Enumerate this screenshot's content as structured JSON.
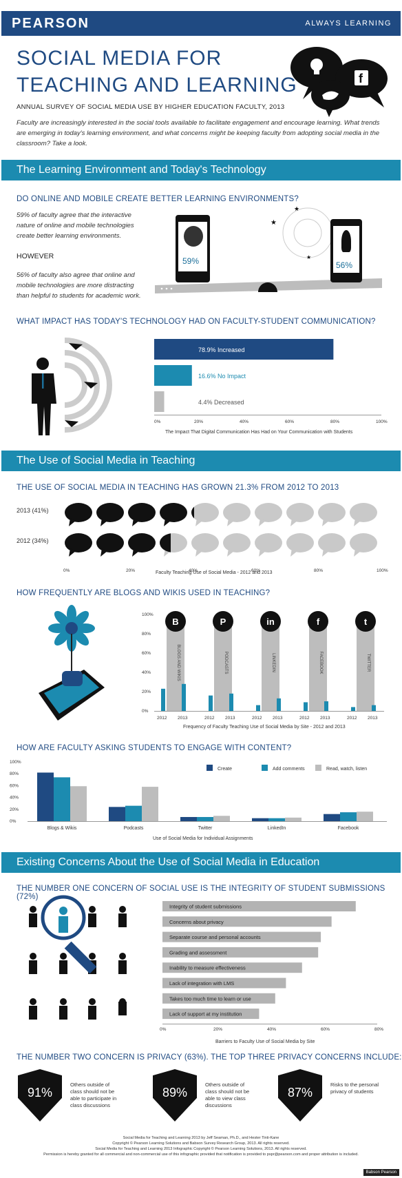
{
  "header": {
    "brand": "PEARSON",
    "tagline": "ALWAYS LEARNING"
  },
  "title_line1": "SOCIAL MEDIA FOR",
  "title_line2": "TEACHING AND LEARNING",
  "subtitle": "ANNUAL SURVEY OF SOCIAL MEDIA USE BY HIGHER EDUCATION FACULTY, 2013",
  "intro": "Faculty are increasingly interested in the social tools available to facilitate engagement and encourage learning. What trends are emerging in today's learning environment, and what concerns might be keeping faculty from adopting social media in the classroom? Take a look.",
  "section1": {
    "band": "The Learning Environment and Today's Technology",
    "q1": "DO ONLINE AND MOBILE CREATE BETTER LEARNING ENVIRONMENTS?",
    "agree_text": "59% of faculty agree that the interactive nature of online and mobile technologies create better learning environments.",
    "however": "HOWEVER",
    "distract_text": "56% of faculty also agree that online and mobile technologies are more distracting than helpful to students for academic work.",
    "phone_left_pct": "59%",
    "phone_right_pct": "56%",
    "q2": "WHAT IMPACT HAS TODAY'S TECHNOLOGY HAD ON FACULTY-STUDENT COMMUNICATION?",
    "impact_caption": "The Impact That Digital Communication Has Had on Your Communication with Students"
  },
  "impact_chart": {
    "type": "bar",
    "categories": [
      "Increased",
      "No Impact",
      "Decreased"
    ],
    "values": [
      78.9,
      16.6,
      4.4
    ],
    "labels": [
      "78.9%  Increased",
      "16.6%  No Impact",
      "4.4%  Decreased"
    ],
    "colors": [
      "#1f4a82",
      "#1c8bb0",
      "#bdbdbd"
    ],
    "ticks": [
      "0%",
      "20%",
      "40%",
      "60%",
      "80%",
      "100%"
    ],
    "xlim": [
      0,
      100
    ]
  },
  "section2": {
    "band": "The Use of Social Media in Teaching",
    "q1": "THE USE OF SOCIAL MEDIA IN TEACHING HAS GROWN 21.3% FROM 2012 TO 2013",
    "row1": "2013  (41%)",
    "row2": "2012  (34%)",
    "bubble_ticks": [
      "0%",
      "20%",
      "40%",
      "60%",
      "80%",
      "100%"
    ],
    "bubble_caption": "Faculty Teaching Use of Social Media - 2012 and 2013",
    "q2": "HOW FREQUENTLY ARE BLOGS AND WIKIS USED IN TEACHING?",
    "freq_caption": "Frequency of Faculty Teaching Use of Social Media by Site - 2012 and 2013",
    "q3": "HOW ARE FACULTY ASKING STUDENTS TO ENGAGE WITH CONTENT?",
    "engage_caption": "Use of Social Media for Individual Assignments"
  },
  "bubble_data": {
    "values": [
      41,
      34
    ],
    "years": [
      "2013",
      "2012"
    ]
  },
  "freq_chart": {
    "type": "bar",
    "categories": [
      "BLOGS AND WIKIS",
      "PODCASTS",
      "LINKEDIN",
      "FACEBOOK",
      "TWITTER"
    ],
    "icons": [
      "B",
      "P",
      "in",
      "f",
      "t"
    ],
    "icon_names": [
      "blogger-icon",
      "podcast-icon",
      "linkedin-icon",
      "facebook-icon",
      "twitter-icon"
    ],
    "years": [
      "2012",
      "2013"
    ],
    "series": [
      {
        "name": "2012",
        "values": [
          23,
          16,
          6,
          9,
          4
        ]
      },
      {
        "name": "2013",
        "values": [
          28,
          18,
          13,
          10,
          6
        ]
      }
    ],
    "ticks": [
      "100%",
      "80%",
      "60%",
      "40%",
      "20%",
      "0%"
    ],
    "ylim": [
      0,
      100
    ]
  },
  "engage_chart": {
    "type": "bar",
    "categories": [
      "Blogs & Wikis",
      "Podcasts",
      "Twitter",
      "LinkedIn",
      "Facebook"
    ],
    "series": [
      {
        "name": "Create",
        "color": "#1f4a82",
        "values": [
          82,
          24,
          7,
          5,
          12
        ]
      },
      {
        "name": "Add comments",
        "color": "#1c8bb0",
        "values": [
          74,
          26,
          7,
          5,
          15
        ]
      },
      {
        "name": "Read, watch, listen",
        "color": "#bdbdbd",
        "values": [
          59,
          58,
          9,
          6,
          16
        ]
      }
    ],
    "ticks": [
      "100%",
      "80%",
      "60%",
      "40%",
      "20%",
      "0%"
    ],
    "ylim": [
      0,
      100
    ]
  },
  "section3": {
    "band": "Existing Concerns About the Use of Social Media in Education",
    "q1": "THE NUMBER ONE CONCERN OF SOCIAL USE IS THE INTEGRITY OF STUDENT SUBMISSIONS (72%)",
    "concern_caption": "Barriers to Faculty Use of Social Media by Site",
    "q2": "THE NUMBER TWO CONCERN IS PRIVACY (63%). THE TOP THREE PRIVACY CONCERNS INCLUDE:"
  },
  "concern_chart": {
    "type": "bar",
    "categories": [
      "Integrity of student submissions",
      "Concerns about privacy",
      "Separate course and personal accounts",
      "Grading and assessment",
      "Inability to measure effectiveness",
      "Lack of integration with LMS",
      "Takes too much time to learn or use",
      "Lack of support at my institution"
    ],
    "values": [
      72,
      63,
      59,
      58,
      52,
      46,
      42,
      36
    ],
    "ticks": [
      "0%",
      "20%",
      "40%",
      "60%",
      "80%"
    ],
    "xlim": [
      0,
      80
    ]
  },
  "privacy": [
    {
      "pct": "91%",
      "text": "Others outside of class should not be able to participate in class discussions"
    },
    {
      "pct": "89%",
      "text": "Others outside of class should not be able to view class discussions"
    },
    {
      "pct": "87%",
      "text": "Risks to the personal privacy of students"
    }
  ],
  "footer": {
    "l1": "Social Media for Teaching and Learning 2013 by Jeff Seaman, Ph.D., and Hester Tinti-Kane",
    "l2": "Copyright © Pearson Learning Solutions and Babson Survey Research Group, 2013. All rights reserved.",
    "l3": "Social Media for Teaching and Learning 2013 Infographic Copyright © Pearson Learning Solutions, 2013. All rights reserved.",
    "l4": "Permission is hereby granted for all commercial and non-commercial use of this infographic provided that notification is provided to pspr@pearson.com and proper attribution is included.",
    "badge": "Babson Pearson"
  }
}
